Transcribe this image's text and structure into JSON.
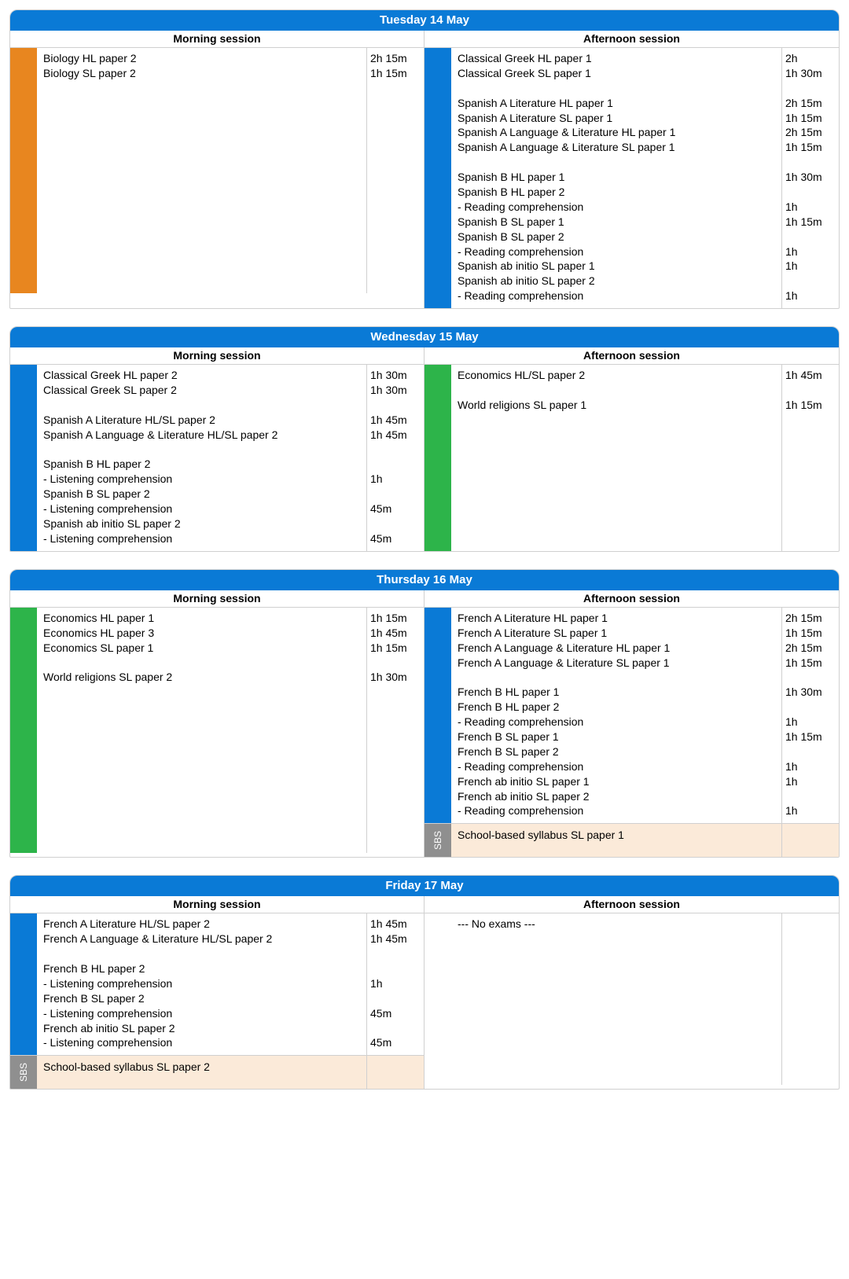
{
  "colors": {
    "header_bg": "#0a7ad6",
    "border": "#d0d0d0",
    "orange": "#e8861f",
    "blue": "#0a7ad6",
    "green": "#2db44a",
    "sbs_gray": "#8f8f8f",
    "sbs_fill": "#fbead9"
  },
  "session_labels": {
    "morning": "Morning session",
    "afternoon": "Afternoon session"
  },
  "sbs_label": "SBS",
  "days": [
    {
      "title": "Tuesday 14 May",
      "morning": {
        "blocks": [
          {
            "bar_color": "#e8861f",
            "rows": [
              {
                "exam": "Biology HL paper 2",
                "dur": "2h 15m"
              },
              {
                "exam": "Biology SL paper 2",
                "dur": "1h 15m"
              },
              {
                "gap": true
              },
              {
                "gap": true
              },
              {
                "gap": true
              },
              {
                "gap": true
              },
              {
                "gap": true
              },
              {
                "gap": true
              },
              {
                "gap": true
              },
              {
                "gap": true
              },
              {
                "gap": true
              },
              {
                "gap": true
              },
              {
                "gap": true
              },
              {
                "gap": true
              },
              {
                "gap": true
              },
              {
                "gap": true
              }
            ]
          }
        ]
      },
      "afternoon": {
        "blocks": [
          {
            "bar_color": "#0a7ad6",
            "rows": [
              {
                "exam": "Classical Greek HL paper 1",
                "dur": "2h"
              },
              {
                "exam": "Classical Greek SL paper 1",
                "dur": "1h 30m"
              },
              {
                "gap": true
              },
              {
                "exam": "Spanish A Literature HL paper 1",
                "dur": "2h 15m"
              },
              {
                "exam": "Spanish A Literature SL paper 1",
                "dur": "1h 15m"
              },
              {
                "exam": "Spanish A Language & Literature HL paper 1",
                "dur": "2h 15m"
              },
              {
                "exam": "Spanish A Language & Literature SL paper 1",
                "dur": "1h 15m"
              },
              {
                "gap": true
              },
              {
                "exam": "Spanish B HL paper 1",
                "dur": "1h 30m"
              },
              {
                "exam": "Spanish B HL paper 2",
                "dur": ""
              },
              {
                "exam": "- Reading comprehension",
                "dur": "1h"
              },
              {
                "exam": "Spanish B SL paper 1",
                "dur": "1h 15m"
              },
              {
                "exam": "Spanish B SL paper 2",
                "dur": ""
              },
              {
                "exam": "- Reading comprehension",
                "dur": "1h"
              },
              {
                "exam": "Spanish ab initio SL paper 1",
                "dur": "1h"
              },
              {
                "exam": "Spanish ab initio SL paper 2",
                "dur": ""
              },
              {
                "exam": "- Reading comprehension",
                "dur": "1h"
              }
            ]
          }
        ]
      }
    },
    {
      "title": "Wednesday 15 May",
      "morning": {
        "blocks": [
          {
            "bar_color": "#0a7ad6",
            "rows": [
              {
                "exam": "Classical Greek HL paper 2",
                "dur": "1h 30m"
              },
              {
                "exam": "Classical Greek SL paper 2",
                "dur": "1h 30m"
              },
              {
                "gap": true
              },
              {
                "exam": "Spanish A Literature HL/SL paper 2",
                "dur": "1h 45m"
              },
              {
                "exam": "Spanish A Language & Literature HL/SL paper 2",
                "dur": "1h 45m"
              },
              {
                "gap": true
              },
              {
                "exam": "Spanish B HL paper 2",
                "dur": ""
              },
              {
                "exam": "- Listening comprehension",
                "dur": "1h"
              },
              {
                "exam": "Spanish B SL paper 2",
                "dur": ""
              },
              {
                "exam": "- Listening comprehension",
                "dur": "45m"
              },
              {
                "exam": "Spanish ab initio SL paper 2",
                "dur": ""
              },
              {
                "exam": "- Listening comprehension",
                "dur": "45m"
              }
            ]
          }
        ]
      },
      "afternoon": {
        "blocks": [
          {
            "bar_color": "#2db44a",
            "rows": [
              {
                "exam": "Economics HL/SL paper 2",
                "dur": "1h 45m"
              },
              {
                "gap": true
              },
              {
                "exam": "World religions SL paper 1",
                "dur": "1h 15m"
              },
              {
                "gap": true
              },
              {
                "gap": true
              },
              {
                "gap": true
              },
              {
                "gap": true
              },
              {
                "gap": true
              },
              {
                "gap": true
              },
              {
                "gap": true
              },
              {
                "gap": true
              },
              {
                "gap": true
              }
            ]
          }
        ]
      }
    },
    {
      "title": "Thursday 16 May",
      "morning": {
        "blocks": [
          {
            "bar_color": "#2db44a",
            "rows": [
              {
                "exam": "Economics HL paper 1",
                "dur": "1h 15m"
              },
              {
                "exam": "Economics HL paper 3",
                "dur": "1h 45m"
              },
              {
                "exam": "Economics SL paper 1",
                "dur": "1h 15m"
              },
              {
                "gap": true
              },
              {
                "exam": "World religions SL paper 2",
                "dur": "1h 30m"
              },
              {
                "gap": true
              },
              {
                "gap": true
              },
              {
                "gap": true
              },
              {
                "gap": true
              },
              {
                "gap": true
              },
              {
                "gap": true
              },
              {
                "gap": true
              },
              {
                "gap": true
              },
              {
                "gap": true
              },
              {
                "gap": true
              },
              {
                "gap": true
              }
            ]
          }
        ]
      },
      "afternoon": {
        "blocks": [
          {
            "bar_color": "#0a7ad6",
            "rows": [
              {
                "exam": "French A Literature HL paper 1",
                "dur": "2h 15m"
              },
              {
                "exam": "French A Literature SL paper 1",
                "dur": "1h 15m"
              },
              {
                "exam": "French A Language & Literature HL paper 1",
                "dur": "2h 15m"
              },
              {
                "exam": "French A Language & Literature SL paper 1",
                "dur": "1h 15m"
              },
              {
                "gap": true
              },
              {
                "exam": "French B HL paper 1",
                "dur": "1h 30m"
              },
              {
                "exam": "French B HL paper 2",
                "dur": ""
              },
              {
                "exam": "- Reading comprehension",
                "dur": "1h"
              },
              {
                "exam": "French B SL paper 1",
                "dur": "1h 15m"
              },
              {
                "exam": "French B SL paper 2",
                "dur": ""
              },
              {
                "exam": "- Reading comprehension",
                "dur": "1h"
              },
              {
                "exam": "French ab initio SL paper 1",
                "dur": "1h"
              },
              {
                "exam": "French ab initio SL paper 2",
                "dur": ""
              },
              {
                "exam": "- Reading comprehension",
                "dur": "1h"
              }
            ]
          }
        ],
        "sbs": {
          "text": "School-based syllabus SL paper 1"
        }
      }
    },
    {
      "title": "Friday 17 May",
      "morning": {
        "blocks": [
          {
            "bar_color": "#0a7ad6",
            "rows": [
              {
                "exam": "French A Literature HL/SL paper 2",
                "dur": "1h 45m"
              },
              {
                "exam": "French A Language & Literature HL/SL paper 2",
                "dur": "1h 45m"
              },
              {
                "gap": true
              },
              {
                "exam": "French B HL paper 2",
                "dur": ""
              },
              {
                "exam": "- Listening comprehension",
                "dur": "1h"
              },
              {
                "exam": "French B SL paper 2",
                "dur": ""
              },
              {
                "exam": "- Listening comprehension",
                "dur": "45m"
              },
              {
                "exam": "French ab initio SL paper 2",
                "dur": ""
              },
              {
                "exam": "- Listening comprehension",
                "dur": "45m"
              }
            ]
          }
        ],
        "sbs": {
          "text": "School-based syllabus SL paper 2"
        }
      },
      "afternoon": {
        "blocks": [
          {
            "bar_color": "#ffffff",
            "rows": [
              {
                "exam": "--- No exams ---",
                "dur": ""
              },
              {
                "gap": true
              },
              {
                "gap": true
              },
              {
                "gap": true
              },
              {
                "gap": true
              },
              {
                "gap": true
              },
              {
                "gap": true
              },
              {
                "gap": true
              },
              {
                "gap": true
              },
              {
                "gap": true
              },
              {
                "gap": true
              }
            ]
          }
        ]
      }
    }
  ]
}
